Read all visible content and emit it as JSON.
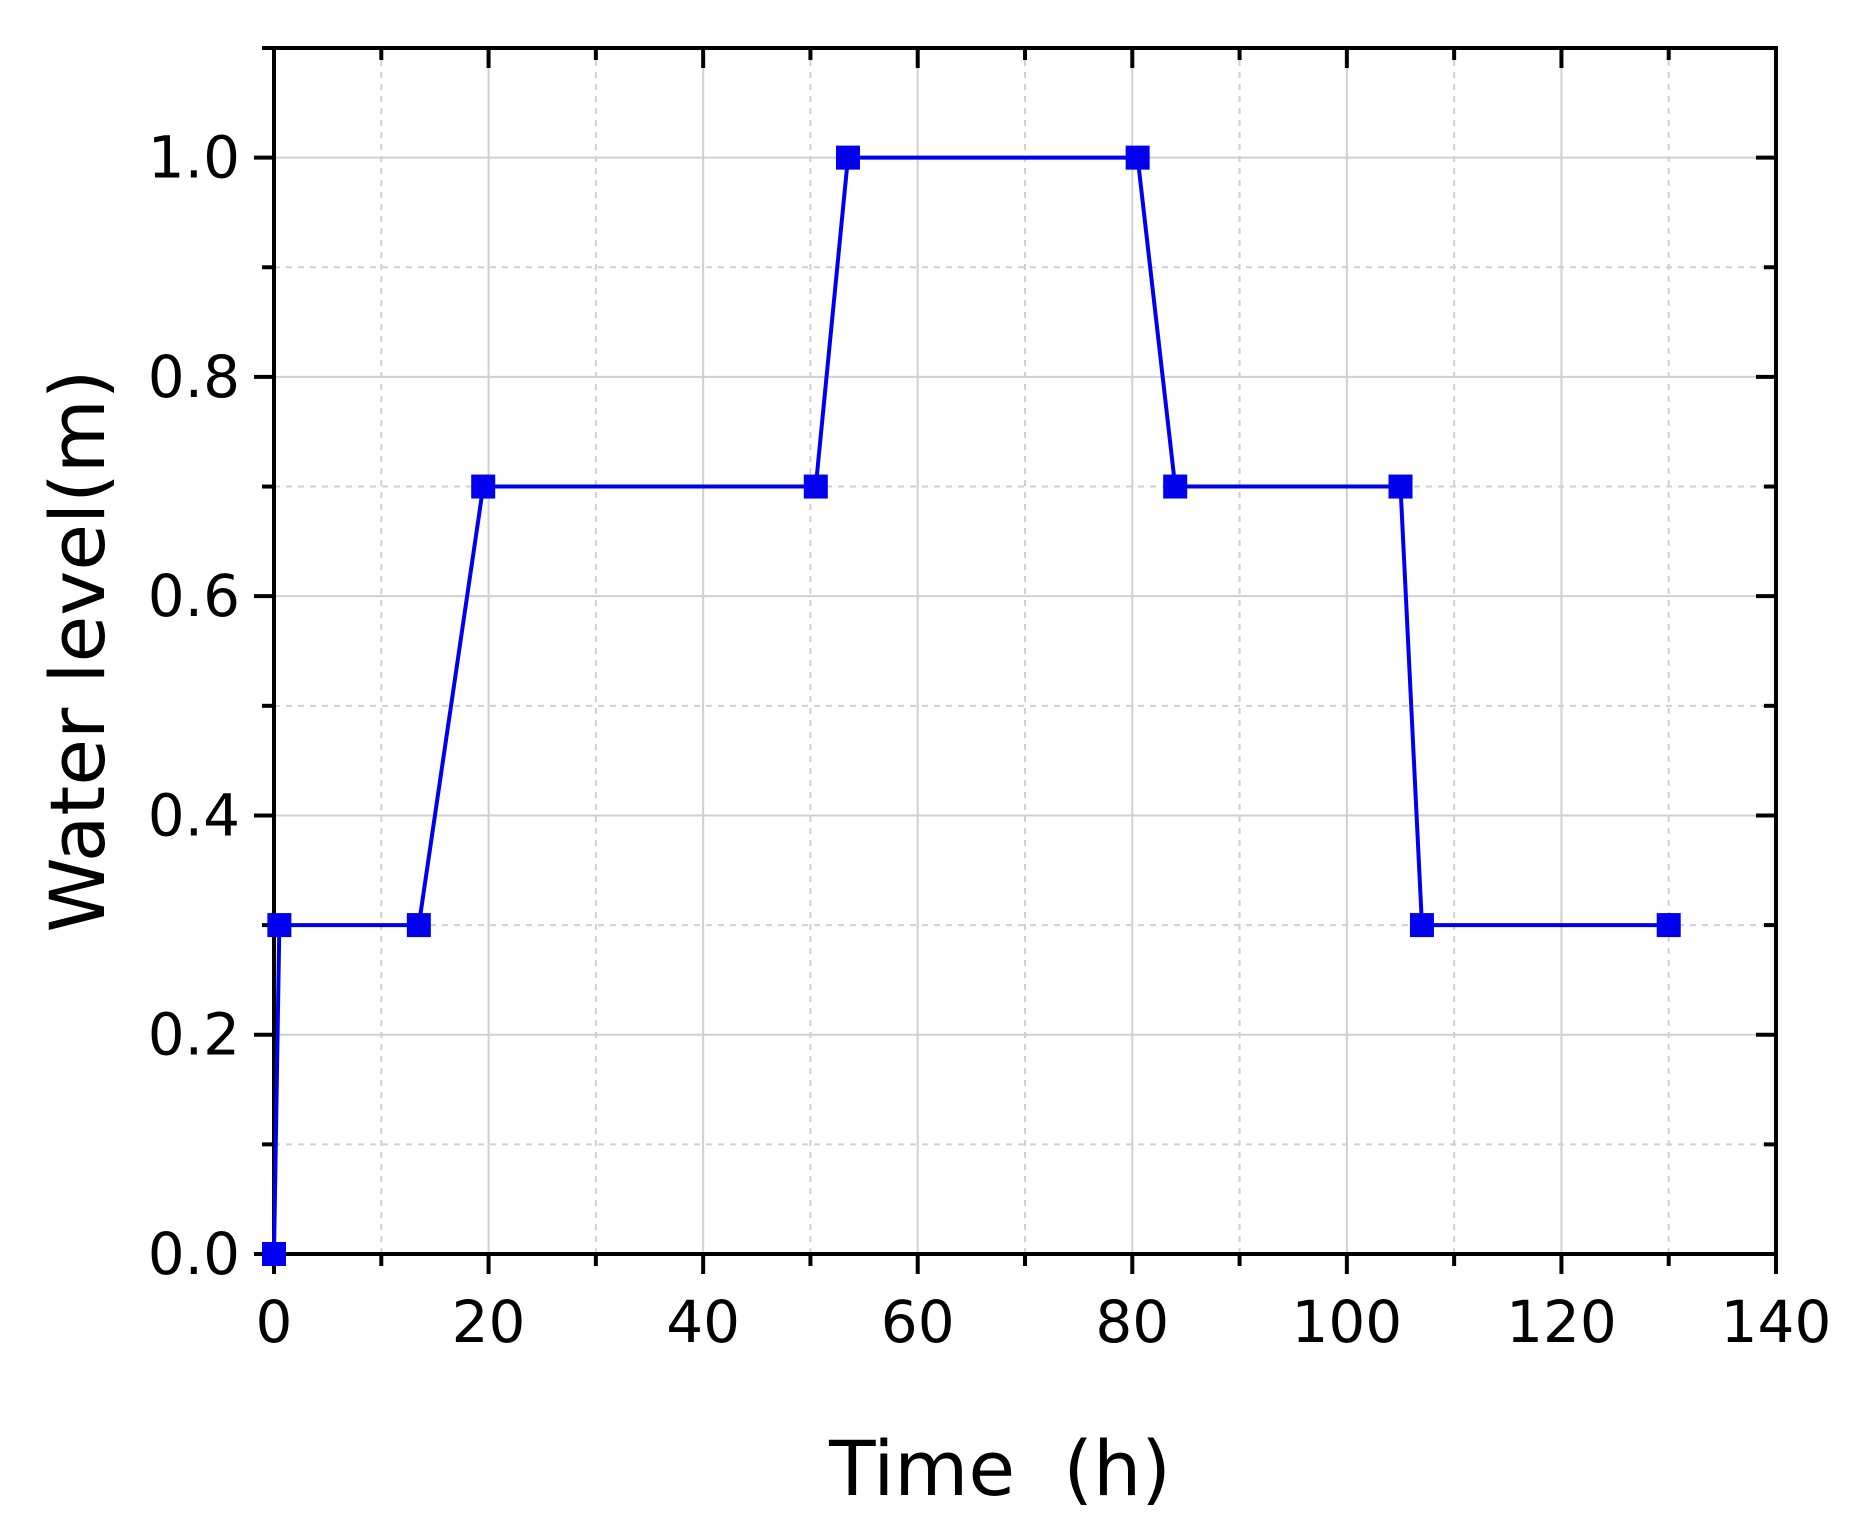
{
  "chart_data": {
    "type": "line",
    "title": "",
    "xlabel": "Time  (h)",
    "ylabel": "Water level(m)",
    "xlim": [
      0,
      140
    ],
    "ylim": [
      0,
      1.1
    ],
    "x_ticks": [
      0,
      20,
      40,
      60,
      80,
      100,
      120,
      140
    ],
    "y_ticks": [
      0.0,
      0.2,
      0.4,
      0.6,
      0.8,
      1.0
    ],
    "x_tick_labels": [
      "0",
      "20",
      "40",
      "60",
      "80",
      "100",
      "120",
      "140"
    ],
    "y_tick_labels": [
      "0.0",
      "0.2",
      "0.4",
      "0.6",
      "0.8",
      "1.0"
    ],
    "grid": true,
    "legend": "none",
    "series": [
      {
        "color": "#0000ee",
        "marker": "square",
        "x": [
          0,
          0.5,
          13.5,
          19.5,
          50.5,
          53.5,
          80.5,
          84,
          105,
          107,
          130
        ],
        "y": [
          0,
          0.3,
          0.3,
          0.7,
          0.7,
          1.0,
          1.0,
          0.7,
          0.7,
          0.3,
          0.3
        ]
      }
    ]
  }
}
